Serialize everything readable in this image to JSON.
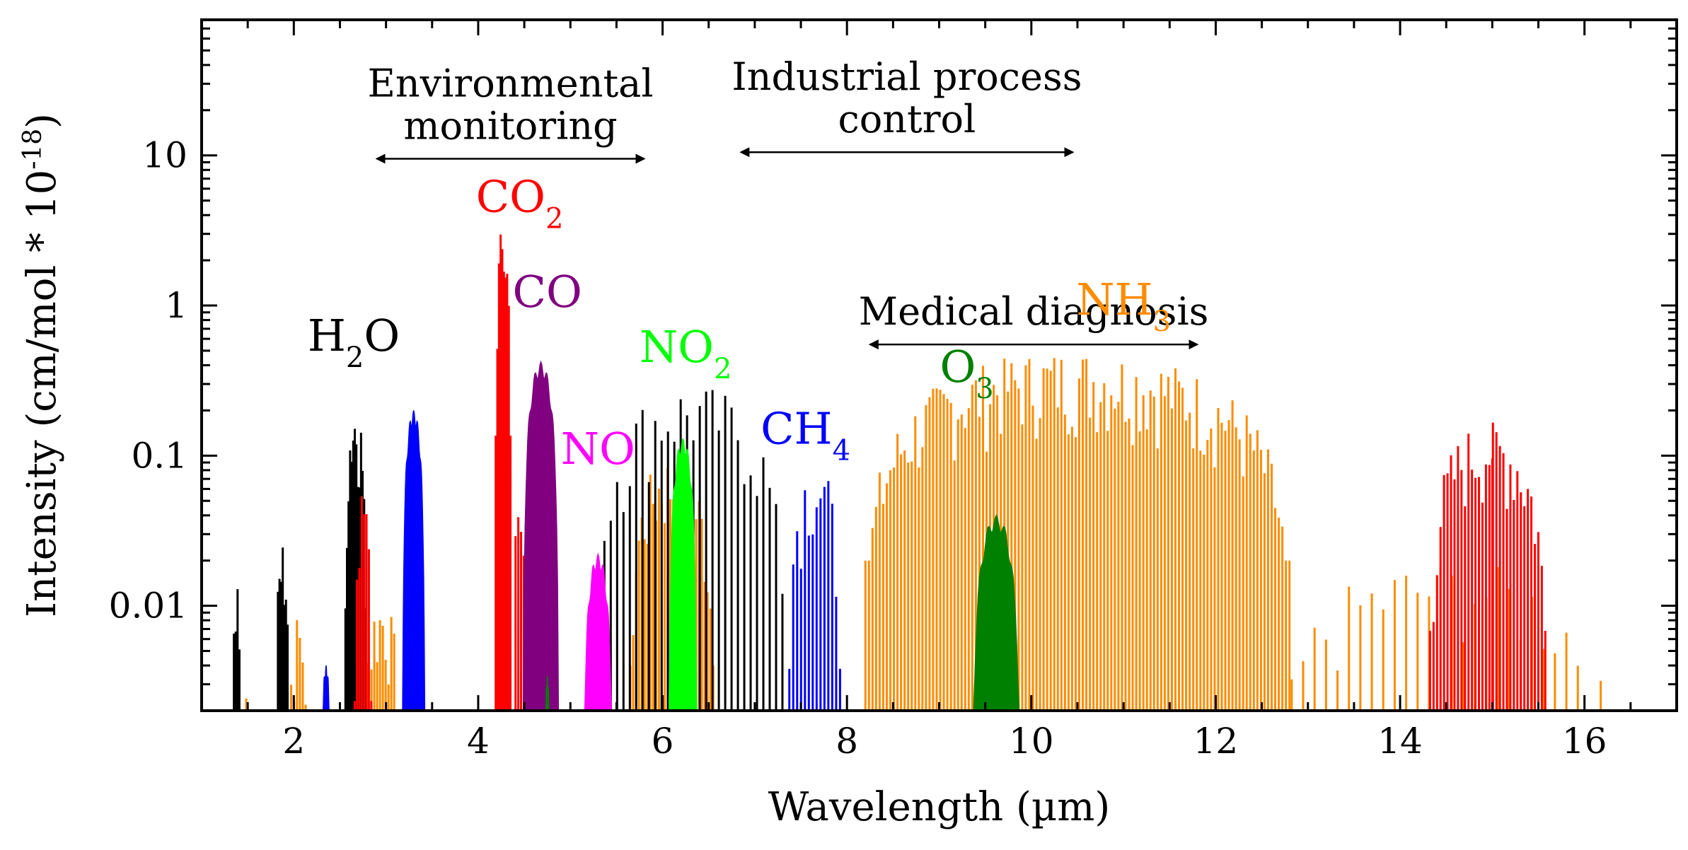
{
  "chart_data": {
    "type": "line",
    "xlabel": "Wavelength (µm)",
    "ylabel_main": "Intensity (cm/mol * 10",
    "ylabel_exp": "-18",
    "ylabel_close": ")",
    "xlim": [
      1.0,
      17.0
    ],
    "ylim": [
      0.002,
      80
    ],
    "yscale": "log",
    "grid": false,
    "x_ticks": [
      2,
      4,
      6,
      8,
      10,
      12,
      14,
      16
    ],
    "y_ticks": [
      {
        "value": 0.01,
        "label": "0.01"
      },
      {
        "value": 0.1,
        "label": "0.1"
      },
      {
        "value": 1,
        "label": "1"
      },
      {
        "value": 10,
        "label": "10"
      }
    ],
    "applications": [
      {
        "line1": "Environmental",
        "line2": "monitoring",
        "x_start": 2.9,
        "x_end": 5.8,
        "y": 9.5
      },
      {
        "line1": "Industrial process",
        "line2": "control",
        "x_start": 6.85,
        "x_end": 10.45,
        "y": 10.5
      },
      {
        "line1": "Medical diagnosis",
        "line2": "",
        "x_start": 8.25,
        "x_end": 11.8,
        "y": 0.55
      }
    ],
    "series": [
      {
        "name": "H2O",
        "base": "H",
        "sub": "2",
        "tail": "O",
        "color": "#000000",
        "label_x": 2.65,
        "label_y": 0.5,
        "bands": [
          {
            "center": 1.38,
            "width": 0.1,
            "peak": 0.018,
            "lines": 6
          },
          {
            "center": 1.88,
            "width": 0.14,
            "peak": 0.028,
            "lines": 9
          },
          {
            "center": 2.67,
            "width": 0.22,
            "peak": 0.24,
            "lines": 14
          },
          {
            "center": 6.3,
            "width": 2.0,
            "peak": 0.3,
            "lines": 30
          }
        ]
      },
      {
        "name": "CO2",
        "base": "CO",
        "sub": "2",
        "tail": "",
        "color": "#ff0000",
        "label_x": 4.45,
        "label_y": 4.2,
        "bands": [
          {
            "center": 2.75,
            "width": 0.18,
            "peak": 0.058,
            "lines": 8
          },
          {
            "center": 4.27,
            "width": 0.16,
            "peak": 3.4,
            "lines": 10
          },
          {
            "center": 4.45,
            "width": 0.15,
            "peak": 0.05,
            "lines": 6
          },
          {
            "center": 14.95,
            "width": 1.25,
            "peak": 0.17,
            "lines": 34
          },
          {
            "center": 15.0,
            "width": 0.03,
            "peak": 0.3,
            "lines": 1
          }
        ]
      },
      {
        "name": "CO",
        "base": "CO",
        "sub": "",
        "tail": "",
        "color": "#800080",
        "label_x": 4.75,
        "label_y": 0.98,
        "bands": [
          {
            "center": 4.68,
            "width": 0.38,
            "peak": 0.42,
            "lines": 0
          }
        ]
      },
      {
        "name": "NO",
        "base": "NO",
        "sub": "",
        "tail": "",
        "color": "#ff00ff",
        "label_x": 5.3,
        "label_y": 0.088,
        "bands": [
          {
            "center": 5.3,
            "width": 0.32,
            "peak": 0.022,
            "lines": 0
          }
        ]
      },
      {
        "name": "NO2",
        "base": "NO",
        "sub": "2",
        "tail": "",
        "color": "#00ff00",
        "label_x": 6.25,
        "label_y": 0.42,
        "bands": [
          {
            "center": 6.22,
            "width": 0.3,
            "peak": 0.13,
            "lines": 0
          }
        ]
      },
      {
        "name": "CH4",
        "base": "CH",
        "sub": "4",
        "tail": "",
        "color": "#0000ff",
        "label_x": 7.55,
        "label_y": 0.12,
        "bands": [
          {
            "center": 2.35,
            "width": 0.12,
            "peak": 0.004,
            "lines": 0
          },
          {
            "center": 3.3,
            "width": 0.24,
            "peak": 0.2,
            "lines": 0
          },
          {
            "center": 7.65,
            "width": 0.55,
            "peak": 0.095,
            "lines": 14
          }
        ]
      },
      {
        "name": "O3",
        "base": "O",
        "sub": "3",
        "tail": "",
        "color": "#008000",
        "label_x": 9.3,
        "label_y": 0.31,
        "bands": [
          {
            "center": 4.75,
            "width": 0.06,
            "peak": 0.0034,
            "lines": 0
          },
          {
            "center": 9.62,
            "width": 0.52,
            "peak": 0.04,
            "lines": 0
          }
        ]
      },
      {
        "name": "NH3",
        "base": "NH",
        "sub": "3",
        "tail": "",
        "color": "#ff8c00",
        "label_x": 11.0,
        "label_y": 0.87,
        "bands": [
          {
            "center": 1.5,
            "width": 0.1,
            "peak": 0.004,
            "lines": 4
          },
          {
            "center": 2.05,
            "width": 0.22,
            "peak": 0.009,
            "lines": 8
          },
          {
            "center": 2.95,
            "width": 0.4,
            "peak": 0.012,
            "lines": 14
          },
          {
            "center": 6.1,
            "width": 0.9,
            "peak": 0.1,
            "lines": 30
          },
          {
            "center": 10.5,
            "width": 4.6,
            "peak": 0.5,
            "lines": 120
          },
          {
            "center": 14.5,
            "width": 3.6,
            "peak": 0.02,
            "lines": 30
          }
        ]
      }
    ]
  }
}
